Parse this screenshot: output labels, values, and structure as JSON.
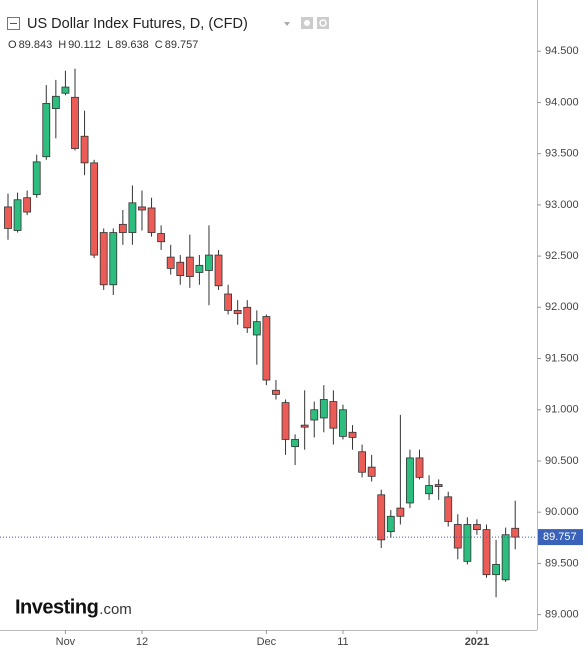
{
  "chart_data": {
    "type": "candlestick",
    "title": "US Dollar Index Futures, D, (CFD)",
    "ohlc_labels": [
      "O",
      "H",
      "L",
      "C"
    ],
    "watermark": [
      "Investing",
      ".com"
    ],
    "categories": [
      null,
      null,
      null,
      null,
      null,
      null,
      "Nov",
      null,
      null,
      null,
      null,
      null,
      null,
      null,
      "12",
      null,
      null,
      null,
      null,
      null,
      null,
      null,
      null,
      null,
      null,
      null,
      null,
      "Dec",
      null,
      null,
      null,
      null,
      null,
      null,
      null,
      "11",
      null,
      null,
      null,
      null,
      null,
      null,
      null,
      null,
      null,
      null,
      null,
      null,
      null,
      "2021",
      null,
      null,
      null,
      null
    ],
    "series": {
      "open": [
        92.98,
        92.75,
        93.07,
        93.1,
        93.47,
        93.94,
        94.09,
        94.05,
        93.67,
        93.41,
        92.73,
        92.22,
        92.81,
        92.73,
        92.98,
        92.97,
        92.72,
        92.49,
        92.44,
        92.49,
        92.34,
        92.36,
        92.51,
        92.13,
        91.97,
        92.0,
        91.73,
        91.91,
        91.19,
        91.07,
        90.64,
        90.85,
        90.9,
        90.92,
        91.08,
        90.74,
        90.78,
        90.59,
        90.44,
        90.17,
        89.81,
        90.04,
        90.09,
        90.53,
        90.18,
        90.27,
        90.15,
        89.88,
        89.52,
        89.88,
        89.83,
        89.39,
        89.34,
        89.843
      ],
      "high": [
        93.11,
        93.12,
        93.14,
        93.49,
        94.17,
        94.22,
        94.31,
        94.33,
        93.92,
        93.44,
        92.77,
        92.77,
        92.95,
        93.19,
        93.14,
        93.07,
        92.8,
        92.61,
        92.51,
        92.71,
        92.51,
        92.8,
        92.56,
        92.22,
        92.07,
        92.07,
        91.97,
        91.93,
        91.29,
        91.1,
        90.76,
        91.19,
        91.08,
        91.24,
        91.19,
        91.05,
        90.85,
        90.66,
        90.56,
        90.22,
        90.02,
        90.95,
        90.61,
        90.61,
        90.36,
        90.32,
        90.2,
        89.98,
        89.95,
        89.93,
        89.88,
        89.73,
        89.85,
        90.112
      ],
      "low": [
        92.66,
        92.73,
        92.9,
        93.07,
        93.44,
        93.65,
        94.07,
        93.53,
        93.29,
        92.48,
        92.17,
        92.12,
        92.61,
        92.61,
        92.75,
        92.69,
        92.56,
        92.32,
        92.22,
        92.19,
        92.22,
        92.02,
        92.17,
        91.93,
        91.83,
        91.75,
        91.44,
        91.24,
        91.1,
        90.56,
        90.46,
        90.61,
        90.73,
        90.78,
        90.66,
        90.71,
        90.61,
        90.34,
        90.3,
        89.65,
        89.75,
        89.88,
        90.04,
        90.32,
        90.12,
        90.12,
        89.86,
        89.54,
        89.49,
        89.78,
        89.36,
        89.17,
        89.32,
        89.638
      ],
      "close": [
        92.77,
        93.05,
        92.93,
        93.42,
        93.99,
        94.06,
        94.15,
        93.55,
        93.41,
        92.51,
        92.22,
        92.73,
        92.73,
        93.02,
        92.95,
        92.73,
        92.64,
        92.38,
        92.31,
        92.3,
        92.41,
        92.51,
        92.21,
        91.97,
        91.94,
        91.8,
        91.86,
        91.29,
        91.15,
        90.71,
        90.71,
        90.83,
        91.0,
        91.1,
        90.82,
        91.0,
        90.73,
        90.39,
        90.35,
        89.73,
        89.96,
        89.96,
        90.53,
        90.34,
        90.26,
        90.25,
        89.91,
        89.65,
        89.88,
        89.83,
        89.39,
        89.49,
        89.78,
        89.757
      ]
    },
    "up_color": "#2dbd7f",
    "down_color": "#ec5c57",
    "last_price_color": "#3a62b8",
    "ylim": [
      88.85,
      95.0
    ],
    "yticks": [
      {
        "value": 89.0,
        "label": "89.000"
      },
      {
        "value": 89.5,
        "label": "89.500"
      },
      {
        "value": 90.0,
        "label": "90.000"
      },
      {
        "value": 90.5,
        "label": "90.500"
      },
      {
        "value": 91.0,
        "label": "91.000"
      },
      {
        "value": 91.5,
        "label": "91.500"
      },
      {
        "value": 92.0,
        "label": "92.000"
      },
      {
        "value": 92.5,
        "label": "92.500"
      },
      {
        "value": 93.0,
        "label": "93.000"
      },
      {
        "value": 93.5,
        "label": "93.500"
      },
      {
        "value": 94.0,
        "label": "94.000"
      },
      {
        "value": 94.5,
        "label": "94.500"
      }
    ]
  }
}
